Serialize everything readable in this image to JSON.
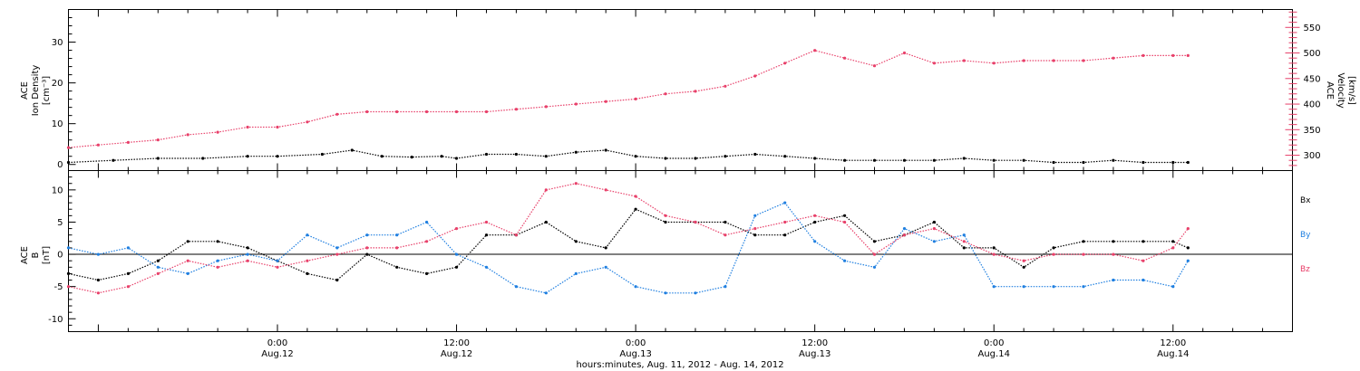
{
  "colors": {
    "black": "#000000",
    "pink": "#e8406a",
    "blue": "#1f7fe0"
  },
  "xaxis": {
    "label": "hours:minutes, Aug. 11, 2012 - Aug. 14, 2012",
    "range_hours": [
      -14,
      68
    ],
    "data_end_hours": 61,
    "ticks": [
      {
        "hours": 0,
        "time": "0:00",
        "date": "Aug.12"
      },
      {
        "hours": 12,
        "time": "12:00",
        "date": "Aug.12"
      },
      {
        "hours": 24,
        "time": "0:00",
        "date": "Aug.13"
      },
      {
        "hours": 36,
        "time": "12:00",
        "date": "Aug.13"
      },
      {
        "hours": 48,
        "time": "0:00",
        "date": "Aug.14"
      },
      {
        "hours": 60,
        "time": "12:00",
        "date": "Aug.14"
      }
    ]
  },
  "panel1": {
    "ylabel_left": [
      "ACE",
      "Ion Density",
      "[cm⁻³]"
    ],
    "ylabel_right": [
      "ACE",
      "Velocity",
      "[km/s]"
    ]
  },
  "panel2": {
    "ylabel_left": [
      "ACE",
      "B",
      "[nT]"
    ],
    "legend": [
      "Bx",
      "By",
      "Bz"
    ]
  },
  "chart_data": [
    {
      "type": "scatter",
      "panel": "top",
      "ylim_left": [
        -1.5,
        38
      ],
      "ylim_right": [
        270,
        585
      ],
      "yticks_left": [
        0,
        10,
        20,
        30
      ],
      "yticks_right": [
        300,
        350,
        400,
        450,
        500,
        550
      ],
      "series": [
        {
          "name": "Ion Density",
          "axis": "left",
          "color": "black",
          "x": [
            -14,
            -11,
            -8,
            -5,
            -2,
            0,
            3,
            5,
            7,
            9,
            11,
            12,
            14,
            16,
            18,
            20,
            22,
            24,
            26,
            28,
            30,
            32,
            34,
            36,
            38,
            40,
            42,
            44,
            46,
            48,
            50,
            52,
            54,
            56,
            58,
            60,
            61
          ],
          "y": [
            0.5,
            1.0,
            1.5,
            1.5,
            2.0,
            2.0,
            2.5,
            3.5,
            2.0,
            1.8,
            2.0,
            1.5,
            2.5,
            2.5,
            2.0,
            3.0,
            3.5,
            2.0,
            1.5,
            1.5,
            2.0,
            2.5,
            2.0,
            1.5,
            1.0,
            1.0,
            1.0,
            1.0,
            1.5,
            1.0,
            1.0,
            0.5,
            0.5,
            1.0,
            0.5,
            0.5,
            0.5
          ]
        },
        {
          "name": "Velocity",
          "axis": "right",
          "color": "pink",
          "x": [
            -14,
            -12,
            -10,
            -8,
            -6,
            -4,
            -2,
            0,
            2,
            4,
            6,
            8,
            10,
            12,
            14,
            16,
            18,
            20,
            22,
            24,
            26,
            28,
            30,
            32,
            34,
            36,
            38,
            40,
            42,
            44,
            46,
            48,
            50,
            52,
            54,
            56,
            58,
            60,
            61
          ],
          "y": [
            315,
            320,
            325,
            330,
            340,
            345,
            355,
            355,
            365,
            380,
            385,
            385,
            385,
            385,
            385,
            390,
            395,
            400,
            405,
            410,
            420,
            425,
            435,
            455,
            480,
            505,
            490,
            475,
            500,
            480,
            485,
            480,
            485,
            485,
            485,
            490,
            495,
            495,
            495
          ]
        }
      ]
    },
    {
      "type": "scatter",
      "panel": "bottom",
      "ylim": [
        -12,
        13
      ],
      "yticks": [
        -10,
        -5,
        0,
        5,
        10
      ],
      "series": [
        {
          "name": "Bx",
          "color": "black",
          "x": [
            -14,
            -12,
            -10,
            -8,
            -6,
            -4,
            -2,
            0,
            2,
            4,
            6,
            8,
            10,
            12,
            14,
            16,
            18,
            20,
            22,
            24,
            26,
            28,
            30,
            32,
            34,
            36,
            38,
            40,
            42,
            44,
            46,
            48,
            50,
            52,
            54,
            56,
            58,
            60,
            61
          ],
          "y": [
            -3,
            -4,
            -3,
            -1,
            2,
            2,
            1,
            -1,
            -3,
            -4,
            0,
            -2,
            -3,
            -2,
            3,
            3,
            5,
            2,
            1,
            7,
            5,
            5,
            5,
            3,
            3,
            5,
            6,
            2,
            3,
            5,
            1,
            1,
            -2,
            1,
            2,
            2,
            2,
            2,
            1
          ]
        },
        {
          "name": "By",
          "color": "blue",
          "x": [
            -14,
            -12,
            -10,
            -8,
            -6,
            -4,
            -2,
            0,
            2,
            4,
            6,
            8,
            10,
            12,
            14,
            16,
            18,
            20,
            22,
            24,
            26,
            28,
            30,
            32,
            34,
            36,
            38,
            40,
            42,
            44,
            46,
            48,
            50,
            52,
            54,
            56,
            58,
            60,
            61
          ],
          "y": [
            1,
            0,
            1,
            -2,
            -3,
            -1,
            0,
            -1,
            3,
            1,
            3,
            3,
            5,
            0,
            -2,
            -5,
            -6,
            -3,
            -2,
            -5,
            -6,
            -6,
            -5,
            6,
            8,
            2,
            -1,
            -2,
            4,
            2,
            3,
            -5,
            -5,
            -5,
            -5,
            -4,
            -4,
            -5,
            -1
          ]
        },
        {
          "name": "Bz",
          "color": "pink",
          "x": [
            -14,
            -12,
            -10,
            -8,
            -6,
            -4,
            -2,
            0,
            2,
            4,
            6,
            8,
            10,
            12,
            14,
            16,
            18,
            20,
            22,
            24,
            26,
            28,
            30,
            32,
            34,
            36,
            38,
            40,
            42,
            44,
            46,
            48,
            50,
            52,
            54,
            56,
            58,
            60,
            61
          ],
          "y": [
            -5,
            -6,
            -5,
            -3,
            -1,
            -2,
            -1,
            -2,
            -1,
            0,
            1,
            1,
            2,
            4,
            5,
            3,
            10,
            11,
            10,
            9,
            6,
            5,
            3,
            4,
            5,
            6,
            5,
            0,
            3,
            4,
            2,
            0,
            -1,
            0,
            0,
            0,
            -1,
            1,
            4
          ]
        }
      ]
    }
  ]
}
